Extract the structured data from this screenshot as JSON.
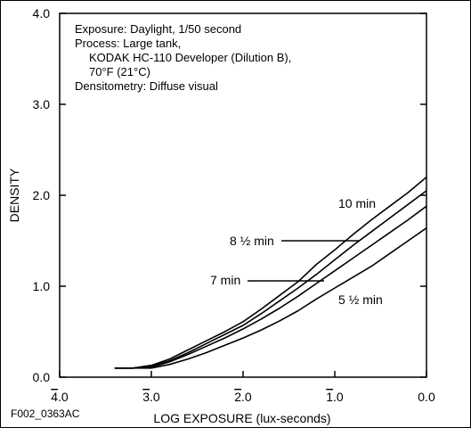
{
  "chart_data": {
    "type": "line",
    "xlabel": "LOG EXPOSURE (lux-seconds)",
    "ylabel": "DENSITY",
    "x_ticks": [
      {
        "value": -4,
        "bar": "4",
        "tail": ".0"
      },
      {
        "value": -3,
        "bar": "3",
        "tail": ".0"
      },
      {
        "value": -2,
        "bar": "2",
        "tail": ".0"
      },
      {
        "value": -1,
        "bar": "1",
        "tail": ".0"
      },
      {
        "value": 0,
        "bar": "",
        "tail": "0.0"
      }
    ],
    "y_ticks": [
      "0.0",
      "1.0",
      "2.0",
      "3.0",
      "4.0"
    ],
    "xlim": [
      -4,
      0
    ],
    "ylim": [
      0,
      4
    ],
    "grid": false,
    "notes": [
      "Exposure:  Daylight, 1/50 second",
      "Process:  Large tank,",
      "KODAK HC-110 Developer (Dilution B),",
      "70°F (21°C)",
      "Densitometry:  Diffuse visual"
    ],
    "series": [
      {
        "name": "10 min",
        "x": [
          -3.4,
          -3.2,
          -3.0,
          -2.8,
          -2.6,
          -2.4,
          -2.2,
          -2.0,
          -1.8,
          -1.6,
          -1.4,
          -1.2,
          -1.0,
          -0.8,
          -0.6,
          -0.4,
          -0.2,
          0.0
        ],
        "y": [
          0.1,
          0.1,
          0.13,
          0.2,
          0.3,
          0.4,
          0.5,
          0.61,
          0.75,
          0.9,
          1.05,
          1.24,
          1.4,
          1.57,
          1.73,
          1.88,
          2.03,
          2.2
        ]
      },
      {
        "name": "8 ½ min",
        "x": [
          -3.4,
          -3.2,
          -3.0,
          -2.8,
          -2.6,
          -2.4,
          -2.2,
          -2.0,
          -1.8,
          -1.6,
          -1.4,
          -1.2,
          -1.0,
          -0.8,
          -0.6,
          -0.4,
          -0.2,
          0.0
        ],
        "y": [
          0.1,
          0.1,
          0.12,
          0.18,
          0.27,
          0.37,
          0.47,
          0.57,
          0.7,
          0.84,
          0.98,
          1.13,
          1.29,
          1.45,
          1.6,
          1.75,
          1.9,
          2.05
        ]
      },
      {
        "name": "7 min",
        "x": [
          -3.4,
          -3.2,
          -3.0,
          -2.8,
          -2.6,
          -2.4,
          -2.2,
          -2.0,
          -1.8,
          -1.6,
          -1.4,
          -1.2,
          -1.0,
          -0.8,
          -0.6,
          -0.4,
          -0.2,
          0.0
        ],
        "y": [
          0.1,
          0.1,
          0.11,
          0.17,
          0.25,
          0.34,
          0.43,
          0.53,
          0.64,
          0.76,
          0.89,
          1.03,
          1.17,
          1.31,
          1.45,
          1.59,
          1.73,
          1.88
        ]
      },
      {
        "name": "5 ½ min",
        "x": [
          -3.4,
          -3.2,
          -3.0,
          -2.8,
          -2.6,
          -2.4,
          -2.2,
          -2.0,
          -1.8,
          -1.6,
          -1.4,
          -1.2,
          -1.0,
          -0.8,
          -0.6,
          -0.4,
          -0.2,
          0.0
        ],
        "y": [
          0.1,
          0.1,
          0.1,
          0.14,
          0.2,
          0.27,
          0.35,
          0.43,
          0.52,
          0.62,
          0.73,
          0.86,
          0.98,
          1.1,
          1.22,
          1.36,
          1.5,
          1.64
        ]
      }
    ]
  },
  "figure_id": "F002_0363AC"
}
